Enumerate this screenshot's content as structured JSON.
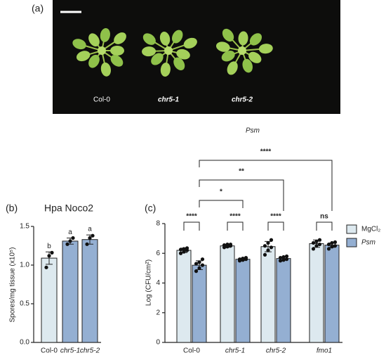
{
  "panel_a": {
    "label": "(a)",
    "plants": [
      "Col-0",
      "chr5-1",
      "chr5-2"
    ]
  },
  "chart_data": [
    {
      "type": "bar",
      "panel_label": "(b)",
      "title": "Hpa Noco2",
      "y_label": "Spores/mg tissue (x10⁵)",
      "categories": [
        "Col-0",
        "chr5-1",
        "chr5-2"
      ],
      "values": [
        1.09,
        1.31,
        1.33
      ],
      "errors": [
        0.08,
        0.04,
        0.06
      ],
      "points": [
        [
          0.97,
          1.12,
          1.16
        ],
        [
          1.27,
          1.31,
          1.35
        ],
        [
          1.27,
          1.35,
          1.38
        ]
      ],
      "value_labels": [
        "b",
        "a",
        "a"
      ],
      "colors": [
        "#dde9ef",
        "#94afd2",
        "#94afd2"
      ],
      "ylim": [
        0,
        1.5
      ],
      "yticks": [
        {
          "value": 0,
          "label": "0.0"
        },
        {
          "value": 0.5,
          "label": "0.5"
        },
        {
          "value": 1,
          "label": "1.0"
        },
        {
          "value": 1.5,
          "label": "1.5"
        }
      ]
    },
    {
      "type": "grouped_bar",
      "panel_label": "(c)",
      "y_label": "Log (CFU/cm²)",
      "categories": [
        "Col-0",
        "chr5-1",
        "chr5-2",
        "fmo1"
      ],
      "series": [
        {
          "name": "MgCl₂",
          "color": "#dde9ef",
          "values": [
            6.2,
            6.5,
            6.45,
            6.65
          ],
          "errors": [
            0.15,
            0.1,
            0.35,
            0.25
          ],
          "points": [
            [
              6.0,
              6.1,
              6.2,
              6.25,
              6.3,
              6.35
            ],
            [
              6.4,
              6.45,
              6.5,
              6.55,
              6.6,
              6.6
            ],
            [
              5.9,
              6.2,
              6.4,
              6.5,
              6.7,
              6.9
            ],
            [
              6.3,
              6.5,
              6.6,
              6.7,
              6.8,
              6.9
            ]
          ]
        },
        {
          "name": "Psm",
          "color": "#94afd2",
          "values": [
            5.2,
            5.6,
            5.65,
            6.55
          ],
          "errors": [
            0.3,
            0.08,
            0.12,
            0.15
          ],
          "points": [
            [
              4.8,
              5.0,
              5.2,
              5.3,
              5.4,
              5.6
            ],
            [
              5.5,
              5.55,
              5.6,
              5.6,
              5.65,
              5.7
            ],
            [
              5.5,
              5.55,
              5.6,
              5.7,
              5.75,
              5.8
            ],
            [
              6.3,
              6.45,
              6.5,
              6.6,
              6.7,
              6.75
            ]
          ]
        }
      ],
      "within_group_significance": [
        "****",
        "****",
        "****",
        "ns"
      ],
      "between_group_title": "Psm",
      "between_group_significance": [
        "*",
        "**",
        "****"
      ],
      "ylim": [
        0,
        8
      ],
      "yticks": [
        0,
        2,
        4,
        6,
        8
      ],
      "legend": "right"
    }
  ]
}
